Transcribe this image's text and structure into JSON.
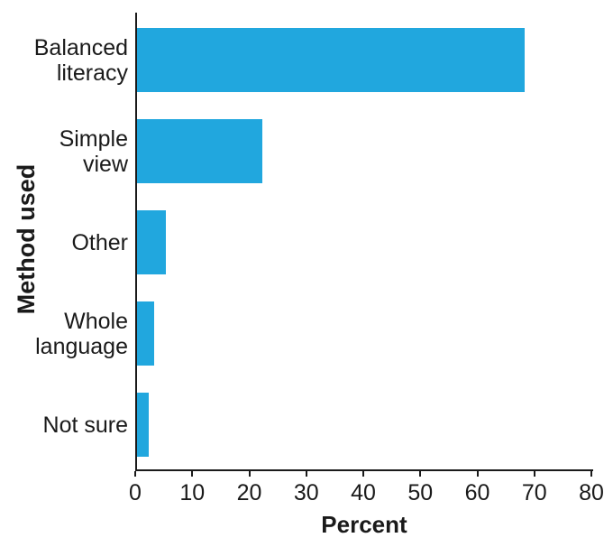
{
  "chart_data": {
    "type": "bar",
    "orientation": "horizontal",
    "title": "",
    "categories": [
      "Balanced literacy",
      "Simple view",
      "Other",
      "Whole language",
      "Not sure"
    ],
    "category_label_lines": [
      [
        "Balanced",
        "literacy"
      ],
      [
        "Simple",
        "view"
      ],
      [
        "Other"
      ],
      [
        "Whole",
        "language"
      ],
      [
        "Not sure"
      ]
    ],
    "values": [
      68,
      22,
      5,
      3,
      2
    ],
    "xlabel": "Percent",
    "ylabel": "Method used",
    "xlim": [
      0,
      80
    ],
    "xticks": [
      0,
      10,
      20,
      30,
      40,
      50,
      60,
      70,
      80
    ],
    "grid": false,
    "legend": false,
    "bar_color": "#21A7DE",
    "axis_color": "#1A1A1A",
    "text_color": "#1A1A1A"
  }
}
